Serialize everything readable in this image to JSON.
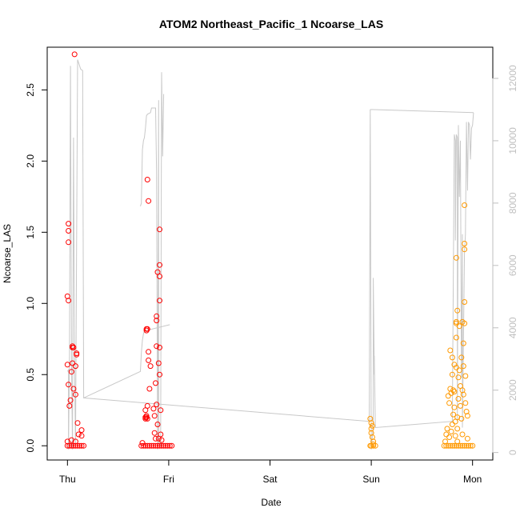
{
  "chart_data": {
    "type": "scatter",
    "title": "ATOM2 Northeast_Pacific_1 Ncoarse_LAS",
    "xlabel": "Date",
    "ylabel": "Ncoarse_LAS",
    "x_ticks": [
      "Thu",
      "Fri",
      "Sat",
      "Sun",
      "Mon"
    ],
    "y_ticks": [
      "0.0",
      "0.5",
      "1.0",
      "1.5",
      "2.0",
      "2.5"
    ],
    "y_tick_values": [
      0,
      0.5,
      1.0,
      1.5,
      2.0,
      2.5
    ],
    "y_right_ticks": [
      "0",
      "2000",
      "4000",
      "6000",
      "8000",
      "10000",
      "12000"
    ],
    "y_right_tick_values": [
      0,
      2000,
      4000,
      6000,
      8000,
      10000,
      12000
    ],
    "xlim": [
      -0.2,
      4.2
    ],
    "ylim": [
      -0.1,
      2.8
    ],
    "ylim_right": [
      -240,
      13000
    ],
    "grid": false,
    "colors": {
      "red_points": "#ff0000",
      "orange_points": "#ff9900",
      "altitude_line": "#c8c8c8"
    },
    "series": [
      {
        "color_key": "red_points",
        "points": [
          [
            0.0,
            0.57
          ],
          [
            0.0,
            1.05
          ],
          [
            0.01,
            1.43
          ],
          [
            0.01,
            1.51
          ],
          [
            0.01,
            1.02
          ],
          [
            0.01,
            1.56
          ],
          [
            0.01,
            0.43
          ],
          [
            0.02,
            0.28
          ],
          [
            0.03,
            0.32
          ],
          [
            0.04,
            0.52
          ],
          [
            0.05,
            0.7
          ],
          [
            0.05,
            0.69
          ],
          [
            0.05,
            0.58
          ],
          [
            0.06,
            0.69
          ],
          [
            0.06,
            0.4
          ],
          [
            0.07,
            2.75
          ],
          [
            0.08,
            0.56
          ],
          [
            0.08,
            0.36
          ],
          [
            0.09,
            0.64
          ],
          [
            0.09,
            0.65
          ],
          [
            0.1,
            0.16
          ],
          [
            0.11,
            0.08
          ],
          [
            0.14,
            0.11
          ],
          [
            0.14,
            0.07
          ],
          [
            0.0,
            0.03
          ],
          [
            0.04,
            0.04
          ],
          [
            0.08,
            0.03
          ],
          [
            0.0,
            0.0
          ],
          [
            0.02,
            0.0
          ],
          [
            0.04,
            0.0
          ],
          [
            0.06,
            0.0
          ],
          [
            0.08,
            0.0
          ],
          [
            0.1,
            0.0
          ],
          [
            0.12,
            0.0
          ],
          [
            0.14,
            0.0
          ],
          [
            0.16,
            0.0
          ],
          [
            0.73,
            0.0
          ],
          [
            0.75,
            0.0
          ],
          [
            0.77,
            0.0
          ],
          [
            0.79,
            0.0
          ],
          [
            0.81,
            0.0
          ],
          [
            0.83,
            0.0
          ],
          [
            0.85,
            0.0
          ],
          [
            0.87,
            0.0
          ],
          [
            0.89,
            0.0
          ],
          [
            0.91,
            0.0
          ],
          [
            0.93,
            0.0
          ],
          [
            0.95,
            0.0
          ],
          [
            0.97,
            0.0
          ],
          [
            0.99,
            0.0
          ],
          [
            1.01,
            0.0
          ],
          [
            1.03,
            0.0
          ],
          [
            0.74,
            0.02
          ],
          [
            0.77,
            0.2
          ],
          [
            0.77,
            0.19
          ],
          [
            0.77,
            0.25
          ],
          [
            0.78,
            0.81
          ],
          [
            0.78,
            0.82
          ],
          [
            0.78,
            0.2
          ],
          [
            0.78,
            0.21
          ],
          [
            0.79,
            0.19
          ],
          [
            0.79,
            0.28
          ],
          [
            0.79,
            1.87
          ],
          [
            0.79,
            0.82
          ],
          [
            0.8,
            1.72
          ],
          [
            0.8,
            0.66
          ],
          [
            0.8,
            0.6
          ],
          [
            0.81,
            0.4
          ],
          [
            0.82,
            0.56
          ],
          [
            0.85,
            0.26
          ],
          [
            0.86,
            0.21
          ],
          [
            0.86,
            0.09
          ],
          [
            0.87,
            0.44
          ],
          [
            0.87,
            0.05
          ],
          [
            0.88,
            0.91
          ],
          [
            0.88,
            0.88
          ],
          [
            0.88,
            0.7
          ],
          [
            0.88,
            0.29
          ],
          [
            0.89,
            1.22
          ],
          [
            0.89,
            0.15
          ],
          [
            0.9,
            0.58
          ],
          [
            0.9,
            0.05
          ],
          [
            0.91,
            1.52
          ],
          [
            0.91,
            1.27
          ],
          [
            0.91,
            1.19
          ],
          [
            0.91,
            1.02
          ],
          [
            0.91,
            0.69
          ],
          [
            0.91,
            0.5
          ],
          [
            0.92,
            0.25
          ],
          [
            0.92,
            0.08
          ],
          [
            0.93,
            0.04
          ]
        ]
      },
      {
        "color_key": "orange_points",
        "points": [
          [
            2.99,
            0.19
          ],
          [
            3.0,
            0.16
          ],
          [
            3.0,
            0.12
          ],
          [
            3.0,
            0.09
          ],
          [
            3.01,
            0.14
          ],
          [
            3.01,
            0.06
          ],
          [
            3.02,
            0.03
          ],
          [
            3.02,
            0.01
          ],
          [
            3.0,
            0.0
          ],
          [
            3.02,
            0.0
          ],
          [
            3.04,
            0.0
          ],
          [
            2.99,
            0.0
          ],
          [
            3.72,
            0.0
          ],
          [
            3.74,
            0.0
          ],
          [
            3.76,
            0.0
          ],
          [
            3.78,
            0.0
          ],
          [
            3.8,
            0.0
          ],
          [
            3.82,
            0.0
          ],
          [
            3.84,
            0.0
          ],
          [
            3.86,
            0.0
          ],
          [
            3.88,
            0.0
          ],
          [
            3.9,
            0.0
          ],
          [
            3.92,
            0.0
          ],
          [
            3.94,
            0.0
          ],
          [
            3.96,
            0.0
          ],
          [
            3.98,
            0.0
          ],
          [
            4.0,
            0.0
          ],
          [
            3.73,
            0.03
          ],
          [
            3.74,
            0.08
          ],
          [
            3.75,
            0.12
          ],
          [
            3.76,
            0.35
          ],
          [
            3.77,
            0.06
          ],
          [
            3.77,
            0.3
          ],
          [
            3.78,
            0.67
          ],
          [
            3.78,
            0.4
          ],
          [
            3.79,
            0.1
          ],
          [
            3.79,
            0.37
          ],
          [
            3.8,
            0.5
          ],
          [
            3.8,
            0.62
          ],
          [
            3.8,
            0.15
          ],
          [
            3.81,
            0.39
          ],
          [
            3.81,
            0.22
          ],
          [
            3.82,
            0.57
          ],
          [
            3.82,
            0.38
          ],
          [
            3.82,
            0.27
          ],
          [
            3.83,
            0.17
          ],
          [
            3.83,
            0.07
          ],
          [
            3.84,
            0.86
          ],
          [
            3.84,
            0.87
          ],
          [
            3.84,
            1.32
          ],
          [
            3.84,
            0.76
          ],
          [
            3.84,
            0.55
          ],
          [
            3.85,
            0.95
          ],
          [
            3.85,
            0.2
          ],
          [
            3.85,
            0.12
          ],
          [
            3.85,
            0.03
          ],
          [
            3.86,
            0.48
          ],
          [
            3.86,
            0.33
          ],
          [
            3.87,
            0.84
          ],
          [
            3.87,
            0.53
          ],
          [
            3.88,
            0.42
          ],
          [
            3.88,
            0.28
          ],
          [
            3.89,
            0.62
          ],
          [
            3.89,
            0.19
          ],
          [
            3.9,
            0.87
          ],
          [
            3.9,
            0.39
          ],
          [
            3.9,
            0.08
          ],
          [
            3.91,
            0.72
          ],
          [
            3.91,
            0.56
          ],
          [
            3.91,
            0.36
          ],
          [
            3.92,
            1.69
          ],
          [
            3.92,
            1.42
          ],
          [
            3.92,
            1.38
          ],
          [
            3.92,
            1.01
          ],
          [
            3.92,
            0.86
          ],
          [
            3.93,
            0.49
          ],
          [
            3.93,
            0.3
          ],
          [
            3.94,
            0.24
          ],
          [
            3.95,
            0.21
          ],
          [
            3.95,
            0.05
          ]
        ]
      }
    ],
    "altitude_line": {
      "axis": "right",
      "segments": [
        [
          [
            0.0,
            2600
          ],
          [
            0.01,
            2650
          ],
          [
            0.01,
            100
          ],
          [
            0.02,
            2750
          ],
          [
            0.03,
            12400
          ],
          [
            0.04,
            2850
          ],
          [
            0.05,
            100
          ],
          [
            0.06,
            10100
          ],
          [
            0.07,
            2800
          ],
          [
            0.08,
            200
          ],
          [
            0.1,
            12600
          ],
          [
            0.13,
            12300
          ],
          [
            0.15,
            12250
          ],
          [
            0.16,
            1750
          ],
          [
            0.72,
            2600
          ],
          [
            0.73,
            3200
          ],
          [
            0.74,
            3600
          ],
          [
            0.75,
            3800
          ],
          [
            0.76,
            3900
          ],
          [
            1.01,
            4100
          ]
        ],
        [
          [
            0.72,
            7900
          ],
          [
            0.73,
            8000
          ],
          [
            0.74,
            9700
          ],
          [
            0.75,
            10000
          ],
          [
            0.76,
            10100
          ],
          [
            0.77,
            10400
          ],
          [
            0.78,
            10800
          ],
          [
            0.79,
            10850
          ],
          [
            0.82,
            10900
          ],
          [
            0.83,
            11050
          ],
          [
            0.87,
            11050
          ],
          [
            0.88,
            9000
          ],
          [
            0.89,
            100
          ],
          [
            0.9,
            11300
          ],
          [
            0.9,
            300
          ],
          [
            0.92,
            200
          ],
          [
            0.93,
            12200
          ],
          [
            0.94,
            9500
          ],
          [
            0.95,
            11500
          ]
        ],
        [
          [
            0.16,
            1750
          ],
          [
            2.98,
            1000
          ],
          [
            2.99,
            11000
          ],
          [
            3.0,
            100
          ],
          [
            3.02,
            900
          ],
          [
            3.02,
            5600
          ],
          [
            3.03,
            2500
          ],
          [
            3.03,
            3100
          ],
          [
            3.04,
            800
          ],
          [
            3.8,
            1000
          ],
          [
            3.82,
            10200
          ],
          [
            3.83,
            10000
          ],
          [
            3.83,
            6800
          ],
          [
            3.84,
            10200
          ],
          [
            3.85,
            10100
          ],
          [
            3.85,
            1000
          ],
          [
            3.86,
            10500
          ],
          [
            3.87,
            8200
          ],
          [
            3.88,
            10000
          ],
          [
            3.89,
            2400
          ],
          [
            3.9,
            7000
          ],
          [
            3.9,
            800
          ],
          [
            3.92,
            6400
          ],
          [
            3.93,
            7000
          ],
          [
            3.94,
            10600
          ],
          [
            3.95,
            8400
          ],
          [
            3.96,
            10600
          ],
          [
            3.97,
            10500
          ],
          [
            3.98,
            9400
          ],
          [
            3.99,
            10400
          ],
          [
            4.0,
            10500
          ],
          [
            4.01,
            10900
          ]
        ],
        [
          [
            2.99,
            11000
          ],
          [
            4.01,
            10900
          ]
        ]
      ]
    }
  }
}
